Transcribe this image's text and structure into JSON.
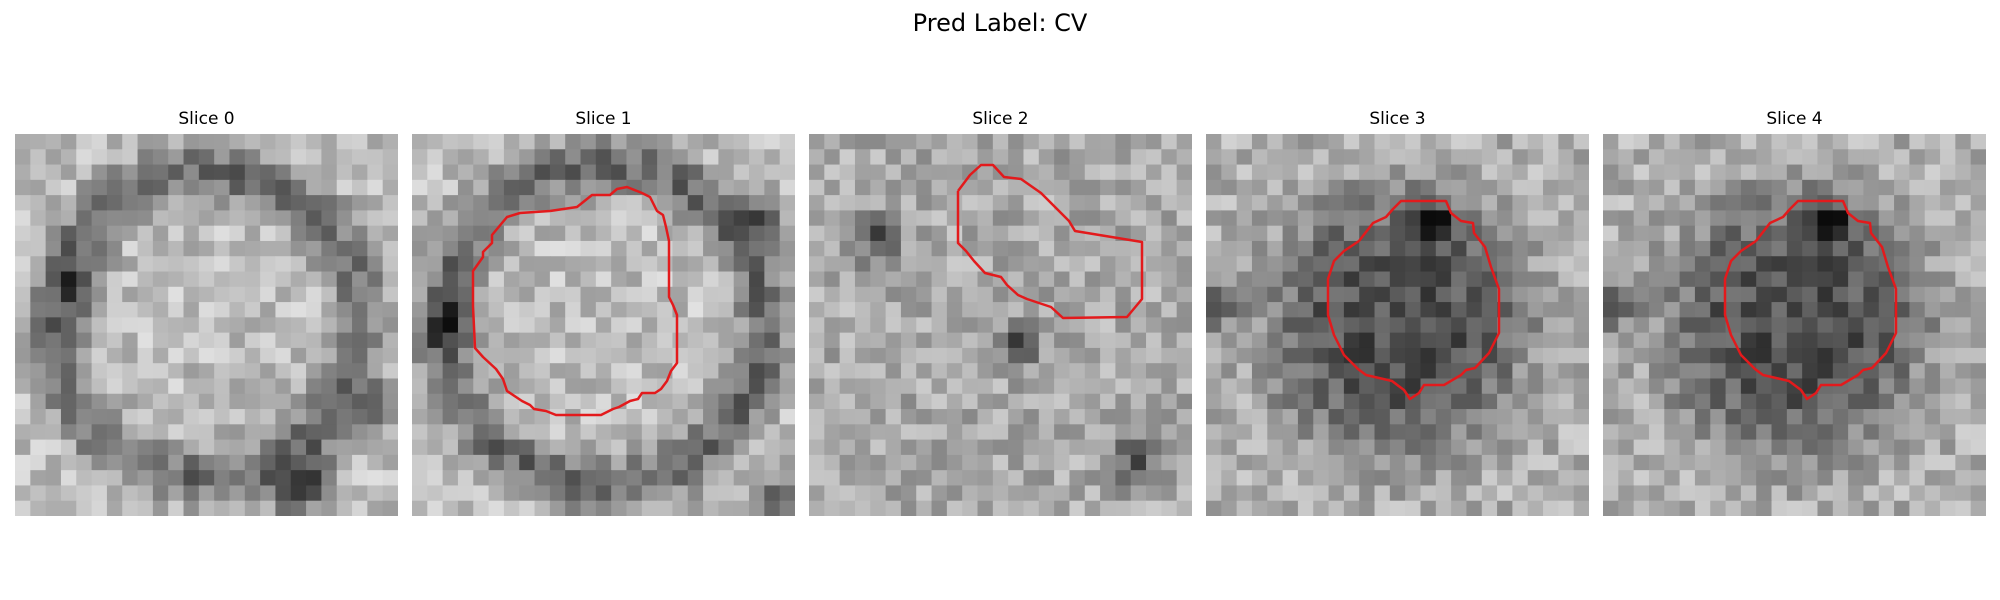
{
  "figure": {
    "title": "Pred Label: CV"
  },
  "panels": [
    {
      "title": "Slice 0",
      "image_name": "slice-0-image",
      "outline": false,
      "seed": 11,
      "mode": "ring",
      "ring_radius": 0.4,
      "dark_spots": [
        [
          0.18,
          0.4
        ],
        [
          0.95,
          0.72
        ],
        [
          0.78,
          0.9
        ],
        [
          0.72,
          0.95
        ]
      ]
    },
    {
      "title": "Slice 1",
      "image_name": "slice-1-image",
      "outline": true,
      "outline_color": "#e31a1c",
      "seed": 23,
      "mode": "ring",
      "ring_radius": 0.42,
      "dark_spots": [
        [
          0.1,
          0.5
        ],
        [
          0.95,
          0.95
        ],
        [
          0.9,
          0.22
        ]
      ]
    },
    {
      "title": "Slice 2",
      "image_name": "slice-2-image",
      "outline": true,
      "outline_color": "#e31a1c",
      "seed": 37,
      "mode": "noise",
      "ring_radius": 0.4,
      "dark_spots": [
        [
          0.18,
          0.28
        ],
        [
          0.85,
          0.86
        ],
        [
          0.55,
          0.55
        ]
      ]
    },
    {
      "title": "Slice 3",
      "image_name": "slice-3-image",
      "outline": true,
      "outline_color": "#e31a1c",
      "seed": 41,
      "mode": "dark",
      "ring_radius": 0.3,
      "dark_spots": [
        [
          0.02,
          0.45
        ],
        [
          0.6,
          0.22
        ]
      ]
    },
    {
      "title": "Slice 4",
      "image_name": "slice-4-image",
      "outline": true,
      "outline_color": "#e31a1c",
      "seed": 41,
      "mode": "dark",
      "ring_radius": 0.3,
      "dark_spots": [
        [
          0.02,
          0.45
        ],
        [
          0.6,
          0.22
        ]
      ]
    }
  ]
}
